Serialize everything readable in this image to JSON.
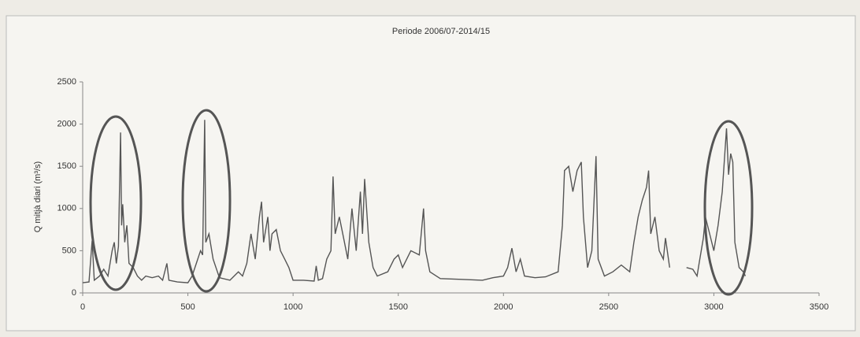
{
  "chart_data": {
    "type": "line",
    "title": "Periode 2006/07-2014/15",
    "y_label": "Q mitjà diari (m³/s)",
    "x": [
      0,
      30,
      45,
      55,
      80,
      100,
      120,
      140,
      150,
      160,
      170,
      180,
      185,
      190,
      200,
      210,
      220,
      240,
      260,
      280,
      300,
      330,
      360,
      380,
      400,
      410,
      450,
      500,
      520,
      540,
      560,
      570,
      580,
      585,
      600,
      620,
      650,
      700,
      740,
      760,
      780,
      800,
      820,
      840,
      850,
      860,
      880,
      890,
      900,
      920,
      940,
      960,
      980,
      1000,
      1050,
      1100,
      1110,
      1120,
      1140,
      1160,
      1180,
      1190,
      1200,
      1220,
      1240,
      1260,
      1280,
      1300,
      1320,
      1330,
      1340,
      1360,
      1380,
      1400,
      1450,
      1480,
      1500,
      1520,
      1560,
      1600,
      1620,
      1630,
      1650,
      1700,
      1800,
      1900,
      1950,
      2000,
      2020,
      2040,
      2060,
      2080,
      2100,
      2150,
      2200,
      2260,
      2280,
      2290,
      2310,
      2330,
      2350,
      2370,
      2380,
      2400,
      2420,
      2440,
      2450,
      2480,
      2520,
      2560,
      2600,
      2620,
      2640,
      2660,
      2680,
      2690,
      2700,
      2720,
      2740,
      2760,
      2770,
      2790,
      2820,
      2870,
      2900,
      2920,
      2930,
      2950,
      2960,
      2980,
      3000,
      3020,
      3040,
      3060,
      3070,
      3080,
      3090,
      3100,
      3120,
      3140,
      3150
    ],
    "series": [
      {
        "name": "Q",
        "color": "#555555",
        "values": [
          120,
          130,
          620,
          150,
          200,
          280,
          200,
          500,
          600,
          350,
          550,
          1900,
          800,
          1050,
          600,
          800,
          350,
          300,
          200,
          150,
          200,
          180,
          200,
          150,
          350,
          150,
          130,
          120,
          200,
          350,
          500,
          450,
          2050,
          600,
          700,
          400,
          180,
          150,
          250,
          200,
          350,
          700,
          400,
          900,
          1080,
          600,
          900,
          500,
          700,
          750,
          500,
          400,
          300,
          150,
          150,
          140,
          320,
          150,
          170,
          400,
          500,
          1380,
          700,
          900,
          650,
          400,
          1000,
          500,
          1200,
          700,
          1350,
          600,
          300,
          200,
          250,
          400,
          450,
          300,
          500,
          450,
          1000,
          500,
          250,
          170,
          160,
          150,
          180,
          200,
          300,
          530,
          250,
          400,
          200,
          180,
          190,
          250,
          800,
          1450,
          1500,
          1200,
          1450,
          1550,
          900,
          300,
          500,
          1620,
          400,
          200,
          250,
          330,
          250,
          600,
          900,
          1100,
          1250,
          1450,
          700,
          900,
          500,
          400,
          650,
          300,
          null,
          300,
          280,
          200,
          350,
          650,
          900,
          700,
          500,
          800,
          1200,
          1950,
          1400,
          1650,
          1550,
          600,
          300,
          250,
          200
        ]
      }
    ],
    "xlim": [
      0,
      3500
    ],
    "xticks": [
      0,
      500,
      1000,
      1500,
      2000,
      2500,
      3000,
      3500
    ],
    "ylim": [
      0,
      2500
    ],
    "yticks": [
      0,
      500,
      1000,
      1500,
      2000,
      2500
    ]
  }
}
